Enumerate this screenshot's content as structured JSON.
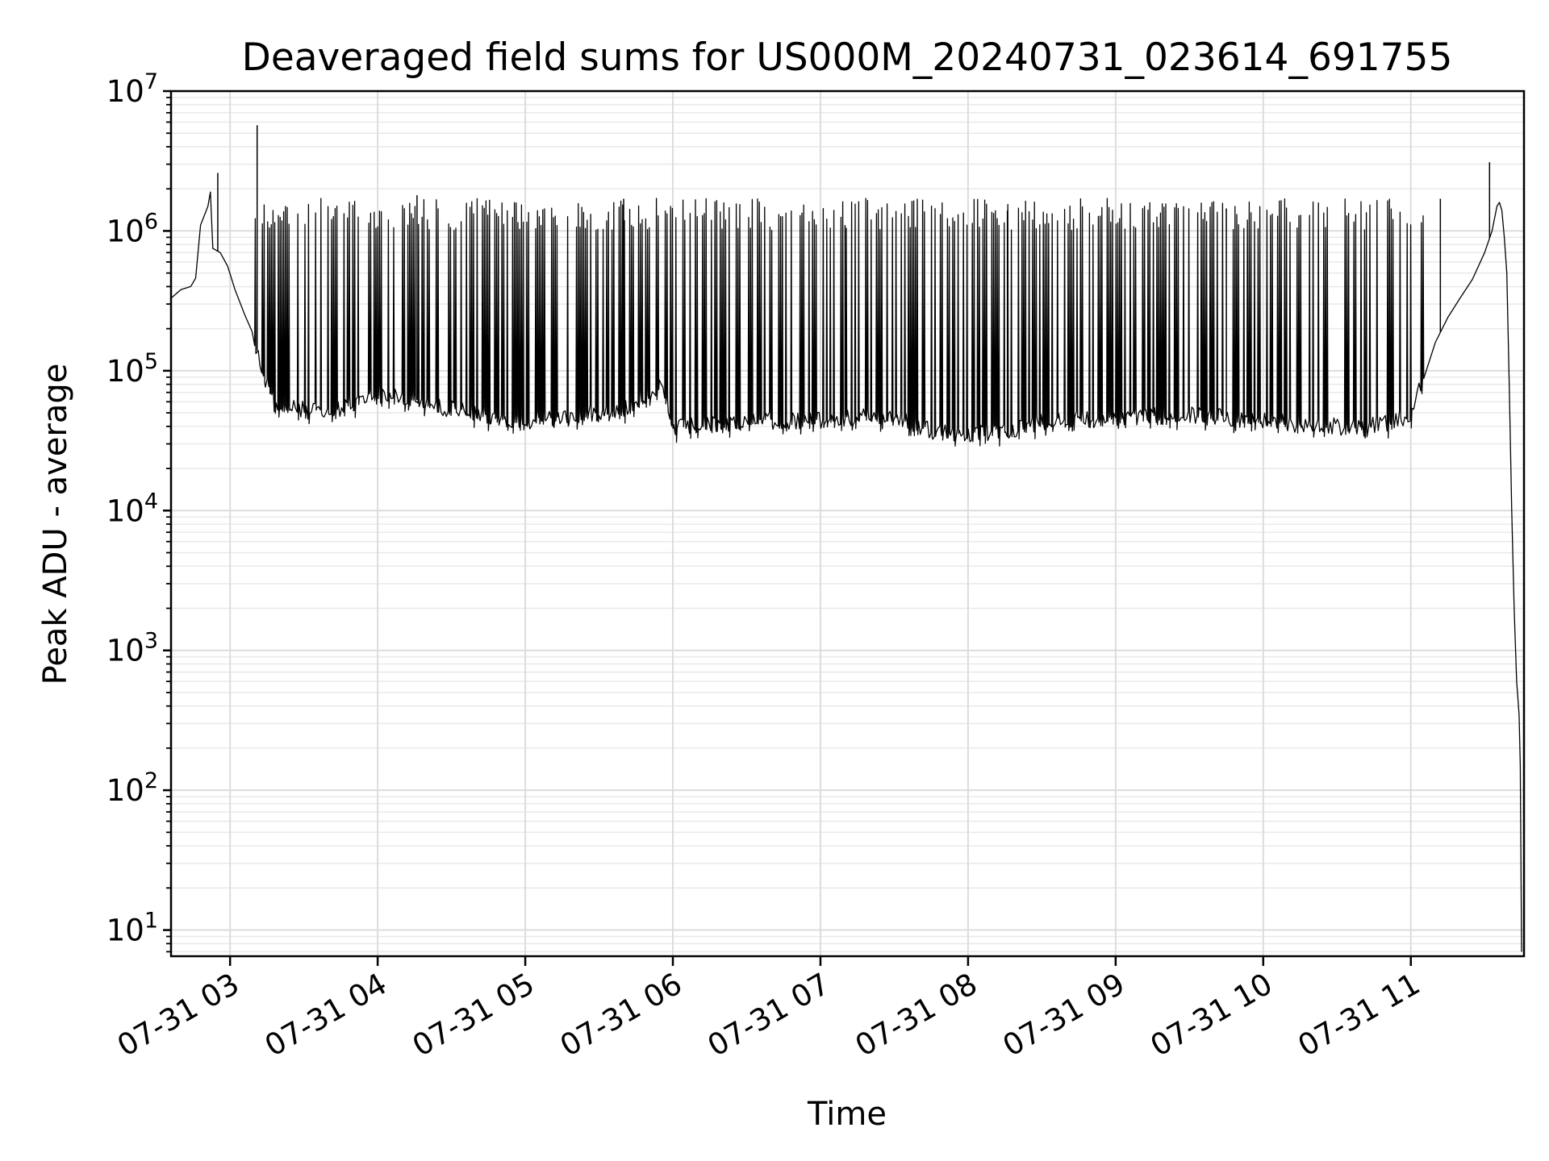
{
  "chart_data": {
    "type": "line",
    "title": "Deaveraged field sums for US000M_20240731_023614_691755",
    "xlabel": "Time",
    "ylabel": "Peak ADU - average",
    "yscale": "log",
    "ylim": [
      6.5,
      10000000
    ],
    "xlim": [
      "2024-07-31 02:36",
      "2024-07-31 11:46"
    ],
    "grid": true,
    "x_ticks": [
      "07-31 03",
      "07-31 04",
      "07-31 05",
      "07-31 06",
      "07-31 07",
      "07-31 08",
      "07-31 09",
      "07-31 10",
      "07-31 11"
    ],
    "y_ticks": [
      {
        "base": "10",
        "exp": "1",
        "value": 10
      },
      {
        "base": "10",
        "exp": "2",
        "value": 100
      },
      {
        "base": "10",
        "exp": "3",
        "value": 1000
      },
      {
        "base": "10",
        "exp": "4",
        "value": 10000
      },
      {
        "base": "10",
        "exp": "5",
        "value": 100000
      },
      {
        "base": "10",
        "exp": "6",
        "value": 1000000
      },
      {
        "base": "10",
        "exp": "7",
        "value": 10000000
      }
    ],
    "series": [
      {
        "color": "#000000",
        "note_points": "approximate envelope read from the plot; x in time of day (HH:MM), y in ADU",
        "points": [
          [
            "02:36",
            330000
          ],
          [
            "02:40",
            380000
          ],
          [
            "02:44",
            400000
          ],
          [
            "02:46",
            460000
          ],
          [
            "02:48",
            1100000
          ],
          [
            "02:51",
            1500000
          ],
          [
            "02:52",
            1900000
          ],
          [
            "02:53",
            750000
          ],
          [
            "02:56",
            700000
          ],
          [
            "02:59",
            560000
          ],
          [
            "03:02",
            380000
          ],
          [
            "03:06",
            250000
          ],
          [
            "03:09",
            190000
          ],
          [
            "03:12",
            120000
          ],
          [
            "03:15",
            80000
          ],
          [
            "03:18",
            60000
          ],
          [
            "03:25",
            55000
          ],
          [
            "03:40",
            52000
          ],
          [
            "04:00",
            70000
          ],
          [
            "04:20",
            60000
          ],
          [
            "04:40",
            50000
          ],
          [
            "05:00",
            45000
          ],
          [
            "05:20",
            48000
          ],
          [
            "05:40",
            55000
          ],
          [
            "05:55",
            80000
          ],
          [
            "06:00",
            40000
          ],
          [
            "06:30",
            45000
          ],
          [
            "07:00",
            45000
          ],
          [
            "07:30",
            50000
          ],
          [
            "07:45",
            38000
          ],
          [
            "08:00",
            36000
          ],
          [
            "08:15",
            38000
          ],
          [
            "08:30",
            45000
          ],
          [
            "09:00",
            48000
          ],
          [
            "09:30",
            50000
          ],
          [
            "10:00",
            45000
          ],
          [
            "10:20",
            42000
          ],
          [
            "10:40",
            40000
          ],
          [
            "11:00",
            48000
          ],
          [
            "11:05",
            90000
          ],
          [
            "11:10",
            160000
          ],
          [
            "11:15",
            240000
          ],
          [
            "11:20",
            330000
          ],
          [
            "11:25",
            450000
          ],
          [
            "11:30",
            700000
          ],
          [
            "11:33",
            1000000
          ],
          [
            "11:35",
            1500000
          ],
          [
            "11:36",
            1600000
          ],
          [
            "11:37",
            1400000
          ],
          [
            "11:38",
            900000
          ],
          [
            "11:39",
            500000
          ],
          [
            "11:40",
            80000
          ],
          [
            "11:41",
            10000
          ],
          [
            "11:42",
            2000
          ],
          [
            "11:43",
            600
          ],
          [
            "11:44",
            350
          ],
          [
            "11:44.5",
            150
          ],
          [
            "11:45",
            7
          ]
        ],
        "peaks": [
          {
            "x": "02:55",
            "y": 2600000
          },
          {
            "x": "03:11",
            "y": 5700000
          },
          {
            "x": "04:16",
            "y": 1800000
          },
          {
            "x": "05:40",
            "y": 1700000
          },
          {
            "x": "07:10",
            "y": 1100000
          },
          {
            "x": "08:16",
            "y": 1400000
          },
          {
            "x": "09:45",
            "y": 1450000
          },
          {
            "x": "11:12",
            "y": 1700000
          },
          {
            "x": "11:32",
            "y": 3100000
          }
        ],
        "dense_band": {
          "low_y": 45000,
          "high_y": 1500000,
          "from": "03:10",
          "to": "11:05"
        }
      }
    ]
  }
}
